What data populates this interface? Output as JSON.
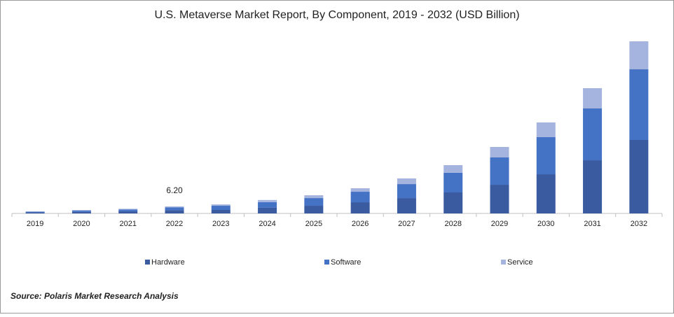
{
  "chart_data": {
    "type": "stacked-bar",
    "title": "U.S. Metaverse Market Report, By Component, 2019 - 2032 (USD Billion)",
    "categories": [
      "2019",
      "2020",
      "2021",
      "2022",
      "2023",
      "2024",
      "2025",
      "2026",
      "2027",
      "2028",
      "2029",
      "2030",
      "2031",
      "2032"
    ],
    "series": [
      {
        "name": "Hardware",
        "color": "#3a5ba0",
        "values": [
          0.9,
          1.4,
          1.9,
          3.0,
          3.1,
          5.0,
          6.8,
          9.9,
          13.6,
          18.6,
          25.4,
          34.7,
          47.1,
          65.1
        ]
      },
      {
        "name": "Software",
        "color": "#4472c4",
        "values": [
          0.6,
          1.1,
          1.6,
          2.3,
          3.7,
          5.0,
          6.8,
          9.3,
          12.4,
          17.4,
          24.2,
          32.9,
          45.9,
          62.6
        ]
      },
      {
        "name": "Service",
        "color": "#a5b4de",
        "values": [
          0.3,
          0.5,
          0.6,
          0.9,
          1.2,
          1.9,
          2.5,
          3.1,
          5.0,
          6.8,
          9.3,
          13.0,
          18.0,
          24.8
        ]
      }
    ],
    "annotations": [
      {
        "x": "2022",
        "text": "6.20"
      }
    ],
    "ylim": [
      0,
      155
    ],
    "source": "Source: Polaris  Market Research Analysis"
  }
}
